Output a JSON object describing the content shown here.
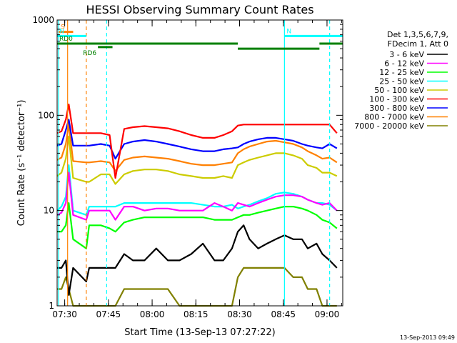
{
  "chart_data": {
    "type": "line",
    "title": "HESSI Observing Summary Count Rates",
    "xlabel": "Start Time (13-Sep-13 07:27:22)",
    "ylabel": "Count Rate (s⁻¹ detector⁻¹)",
    "y_scale": "log",
    "ylim": [
      1,
      1000
    ],
    "xlim_minutes_after_0727": [
      0,
      98
    ],
    "x_ticks": [
      {
        "label": "07:30",
        "minute": 2.6
      },
      {
        "label": "07:45",
        "minute": 17.6
      },
      {
        "label": "08:00",
        "minute": 32.6
      },
      {
        "label": "08:15",
        "minute": 47.6
      },
      {
        "label": "08:30",
        "minute": 62.6
      },
      {
        "label": "08:45",
        "minute": 77.6
      },
      {
        "label": "09:00",
        "minute": 92.6
      }
    ],
    "y_ticks": [
      {
        "label": "1",
        "value": 1
      },
      {
        "label": "10",
        "value": 10
      },
      {
        "label": "100",
        "value": 100
      },
      {
        "label": "1000",
        "value": 1000
      }
    ],
    "legend_header": [
      "Det 1,3,5,6,7,9,",
      "FDecim 1, Att 0"
    ],
    "series": [
      {
        "name": "3 - 6 keV",
        "color": "#000000",
        "x": [
          0,
          1.5,
          3,
          4,
          5.5,
          10,
          11,
          15,
          18,
          20,
          23,
          26,
          30,
          34,
          38,
          42,
          46,
          50,
          54,
          57,
          60,
          62,
          64,
          66,
          69,
          72,
          75,
          78,
          81,
          84,
          86,
          89,
          91,
          93.5,
          96
        ],
        "y": [
          2.5,
          2.5,
          3.0,
          1.3,
          2.5,
          1.8,
          2.5,
          2.5,
          2.5,
          2.5,
          3.5,
          3.0,
          3.0,
          4.0,
          3.0,
          3.0,
          3.5,
          4.5,
          3.0,
          3.0,
          4.0,
          6.0,
          7.0,
          5.0,
          4.0,
          4.5,
          5.0,
          5.5,
          5.0,
          5.0,
          4.0,
          4.5,
          3.5,
          3.0,
          2.5
        ]
      },
      {
        "name": "6 - 12 keV",
        "color": "#ff00ff",
        "x": [
          0,
          1.5,
          3,
          4,
          5.5,
          10,
          11,
          15,
          18,
          20,
          23,
          26,
          30,
          34,
          38,
          42,
          46,
          50,
          54,
          57,
          60,
          62,
          64,
          66,
          69,
          72,
          75,
          78,
          81,
          84,
          86,
          89,
          91,
          93.5,
          96
        ],
        "y": [
          9.0,
          9.5,
          12.0,
          25.0,
          9.0,
          8.0,
          10.0,
          10.0,
          10.0,
          8.0,
          11.0,
          11.0,
          10.0,
          10.5,
          10.5,
          10.0,
          10.0,
          10.0,
          12.0,
          11.0,
          10.0,
          12.0,
          11.5,
          11.0,
          12.0,
          13.0,
          14.0,
          14.5,
          14.5,
          14.0,
          13.0,
          12.0,
          11.5,
          12.0,
          10.0
        ]
      },
      {
        "name": "12 - 25 keV",
        "color": "#00ff00",
        "x": [
          0,
          1.5,
          3,
          4,
          5.5,
          10,
          11,
          15,
          18,
          20,
          23,
          26,
          30,
          34,
          38,
          42,
          46,
          50,
          54,
          57,
          60,
          62,
          64,
          66,
          69,
          72,
          75,
          78,
          81,
          84,
          86,
          89,
          91,
          93.5,
          96
        ],
        "y": [
          6.0,
          6.0,
          7.0,
          12.0,
          5.0,
          4.0,
          7.0,
          7.0,
          6.5,
          6.0,
          7.5,
          8.0,
          8.5,
          8.5,
          8.5,
          8.5,
          8.5,
          8.5,
          8.0,
          8.0,
          8.0,
          8.5,
          9.0,
          9.0,
          9.5,
          10.0,
          10.5,
          11.0,
          11.0,
          10.5,
          10.0,
          9.0,
          8.0,
          7.5,
          6.5
        ]
      },
      {
        "name": "25 - 50 keV",
        "color": "#00ffff",
        "x": [
          0,
          1.5,
          3,
          4,
          5.5,
          10,
          11,
          15,
          18,
          20,
          23,
          26,
          30,
          34,
          38,
          42,
          46,
          50,
          54,
          57,
          60,
          62,
          64,
          66,
          69,
          72,
          75,
          78,
          81,
          84,
          86,
          89,
          91,
          93.5,
          96
        ],
        "y": [
          10.0,
          11.0,
          14.0,
          30.0,
          10.0,
          9.0,
          11.0,
          11.0,
          11.0,
          11.0,
          12.0,
          12.0,
          12.0,
          12.0,
          12.0,
          12.0,
          12.0,
          11.5,
          11.0,
          11.0,
          11.5,
          10.5,
          11.0,
          11.5,
          12.5,
          13.5,
          15.0,
          15.5,
          15.0,
          14.0,
          13.0,
          12.0,
          12.0,
          11.5,
          10.0
        ]
      },
      {
        "name": "50 - 100 keV",
        "color": "#cccc00",
        "x": [
          0,
          1.5,
          3,
          4,
          5.5,
          10,
          11,
          15,
          18,
          20,
          23,
          26,
          30,
          34,
          38,
          42,
          46,
          50,
          54,
          57,
          60,
          62,
          64,
          66,
          69,
          72,
          75,
          78,
          81,
          84,
          86,
          89,
          91,
          93.5,
          96
        ],
        "y": [
          23.0,
          25.0,
          35.0,
          60.0,
          22.0,
          20.0,
          20.0,
          24.0,
          24.0,
          19.0,
          24.0,
          26.0,
          27.0,
          27.0,
          26.0,
          24.0,
          23.0,
          22.0,
          22.0,
          23.0,
          22.0,
          30.0,
          32.0,
          34.0,
          36.0,
          38.0,
          40.0,
          40.0,
          38.0,
          35.0,
          30.0,
          28.0,
          25.0,
          25.0,
          23.0
        ]
      },
      {
        "name": "100 - 300 keV",
        "color": "#ff0000",
        "x": [
          0,
          1.5,
          3,
          4,
          5.5,
          10,
          11,
          15,
          18,
          20,
          23,
          26,
          30,
          34,
          38,
          42,
          46,
          50,
          54,
          57,
          60,
          62,
          64,
          66,
          69,
          72,
          75,
          78,
          81,
          84,
          86,
          89,
          91,
          93.5,
          96
        ],
        "y": [
          65.0,
          68.0,
          90.0,
          130.0,
          65.0,
          65.0,
          65.0,
          65.0,
          62.0,
          22.0,
          72.0,
          75.0,
          77.0,
          75.0,
          73.0,
          68.0,
          62.0,
          58.0,
          58.0,
          62.0,
          68.0,
          78.0,
          80.0,
          80.0,
          80.0,
          80.0,
          80.0,
          80.0,
          80.0,
          80.0,
          80.0,
          80.0,
          80.0,
          80.0,
          65.0
        ]
      },
      {
        "name": "300 - 800 keV",
        "color": "#0000ff",
        "x": [
          0,
          1.5,
          3,
          4,
          5.5,
          10,
          11,
          15,
          18,
          20,
          23,
          26,
          30,
          34,
          38,
          42,
          46,
          50,
          54,
          57,
          60,
          62,
          64,
          66,
          69,
          72,
          75,
          78,
          81,
          84,
          86,
          89,
          91,
          93.5,
          96
        ],
        "y": [
          48.0,
          50.0,
          70.0,
          90.0,
          48.0,
          48.0,
          48.0,
          50.0,
          48.0,
          35.0,
          50.0,
          53.0,
          55.0,
          53.0,
          50.0,
          47.0,
          44.0,
          42.0,
          42.0,
          44.0,
          45.0,
          46.0,
          50.0,
          53.0,
          56.0,
          58.0,
          58.0,
          56.0,
          54.0,
          50.0,
          48.0,
          46.0,
          45.0,
          50.0,
          45.0
        ]
      },
      {
        "name": "800 - 7000 keV",
        "color": "#ff8000",
        "x": [
          0,
          1.5,
          3,
          4,
          5.5,
          10,
          11,
          15,
          18,
          20,
          23,
          26,
          30,
          34,
          38,
          42,
          46,
          50,
          54,
          57,
          60,
          62,
          64,
          66,
          69,
          72,
          75,
          78,
          81,
          84,
          86,
          89,
          91,
          93.5,
          96
        ],
        "y": [
          34.0,
          36.0,
          50.0,
          80.0,
          33.0,
          32.0,
          32.0,
          33.0,
          32.0,
          26.0,
          34.0,
          36.0,
          37.0,
          36.0,
          35.0,
          33.0,
          31.0,
          30.0,
          30.0,
          31.0,
          32.0,
          40.0,
          44.0,
          47.0,
          50.0,
          53.0,
          54.0,
          52.0,
          50.0,
          46.0,
          42.0,
          38.0,
          35.0,
          36.0,
          32.0
        ]
      },
      {
        "name": "7000 - 20000 keV",
        "color": "#808000",
        "x": [
          0,
          1.5,
          3,
          4,
          5.5,
          10,
          11,
          15,
          18,
          20,
          23,
          26,
          30,
          34,
          38,
          42,
          46,
          50,
          54,
          57,
          60,
          62,
          64,
          66,
          69,
          72,
          75,
          78,
          81,
          84,
          86,
          89,
          91,
          93.5,
          96
        ],
        "y": [
          1.5,
          1.5,
          2.0,
          1.5,
          1.0,
          1.0,
          1.0,
          1.0,
          1.0,
          1.0,
          1.5,
          1.5,
          1.5,
          1.5,
          1.5,
          1.0,
          1.0,
          1.0,
          1.0,
          1.0,
          1.0,
          2.0,
          2.5,
          2.5,
          2.5,
          2.5,
          2.5,
          2.5,
          2.0,
          2.0,
          1.5,
          1.5,
          1.0,
          1.0,
          1.0
        ]
      }
    ],
    "markers": [
      {
        "label": "S",
        "color": "#ff8000",
        "x_range": [
          0.5,
          5.5
        ],
        "y_value": 750
      },
      {
        "label": "N",
        "color": "#00ffff",
        "x_range": [
          0,
          10
        ],
        "y_value": 680
      },
      {
        "label": "N",
        "color": "#00ffff",
        "x_range": [
          78,
          98
        ],
        "y_value": 680
      },
      {
        "label": "RD0",
        "color": "#008000",
        "x_range": [
          0,
          62
        ],
        "y_value": 565
      },
      {
        "label": "RD6",
        "color": "#008000",
        "x_range": [
          14,
          19
        ],
        "y_value": 520
      },
      {
        "label": "",
        "color": "#008000",
        "x_range": [
          62,
          90
        ],
        "y_value": 500
      },
      {
        "label": "",
        "color": "#008000",
        "x_range": [
          90,
          98
        ],
        "y_value": 565
      }
    ],
    "vertical_lines": [
      {
        "minute": 0.5,
        "color": "#00ffff",
        "style": "solid"
      },
      {
        "minute": 3.6,
        "color": "#ff8000",
        "style": "solid"
      },
      {
        "minute": 10,
        "color": "#ff8000",
        "style": "dashed"
      },
      {
        "minute": 17,
        "color": "#00ffff",
        "style": "dashed"
      },
      {
        "minute": 78,
        "color": "#00ffff",
        "style": "solid"
      },
      {
        "minute": 93.5,
        "color": "#00ffff",
        "style": "dashed"
      }
    ],
    "timestamp": "13-Sep-2013 09:49",
    "colors": {
      "background": "#ffffff",
      "axes": "#000000"
    }
  }
}
